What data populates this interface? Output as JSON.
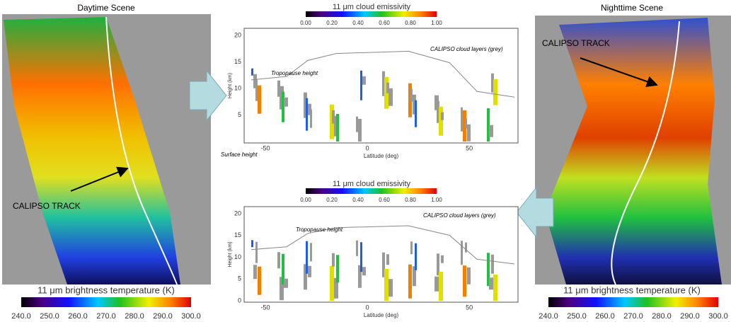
{
  "left_panel": {
    "title": "Daytime Scene",
    "annotation": "CALIPSO TRACK",
    "colorbar": {
      "title": "11 μm brightness temperature (K)",
      "ticks": [
        "240.0",
        "250.0",
        "260.0",
        "270.0",
        "280.0",
        "290.0",
        "300.0"
      ]
    }
  },
  "right_panel": {
    "title": "Nighttime Scene",
    "annotation": "CALIPSO TRACK",
    "colorbar": {
      "title": "11 μm brightness temperature (K)",
      "ticks": [
        "240.0",
        "250.0",
        "260.0",
        "270.0",
        "280.0",
        "290.0",
        "300.0"
      ]
    }
  },
  "top_plot": {
    "colorbar": {
      "title": "11 μm cloud emissivity",
      "ticks": [
        "0.00",
        "0.20",
        "0.40",
        "0.60",
        "0.80",
        "1.00"
      ]
    },
    "y_label": "Height (km)",
    "x_label": "Latitude (deg)",
    "yticks": [
      "20",
      "15",
      "10",
      "5"
    ],
    "xticks": [
      "-50",
      "0",
      "50"
    ],
    "annotations": [
      "Tropopause height",
      "CALIPSO cloud  layers (grey)",
      "Surface height"
    ]
  },
  "bottom_plot": {
    "colorbar": {
      "title": "11 μm cloud emissivity",
      "ticks": [
        "0.00",
        "0.20",
        "0.40",
        "0.60",
        "0.80",
        "1.00"
      ]
    },
    "y_label": "Height (km)",
    "x_label": "Latitude (deg)",
    "yticks": [
      "20",
      "15",
      "10",
      "5",
      "0"
    ],
    "xticks": [
      "-50",
      "0",
      "50"
    ],
    "annotations": [
      "Tropopause height",
      "CALIPSO cloud  layers (grey)"
    ]
  }
}
